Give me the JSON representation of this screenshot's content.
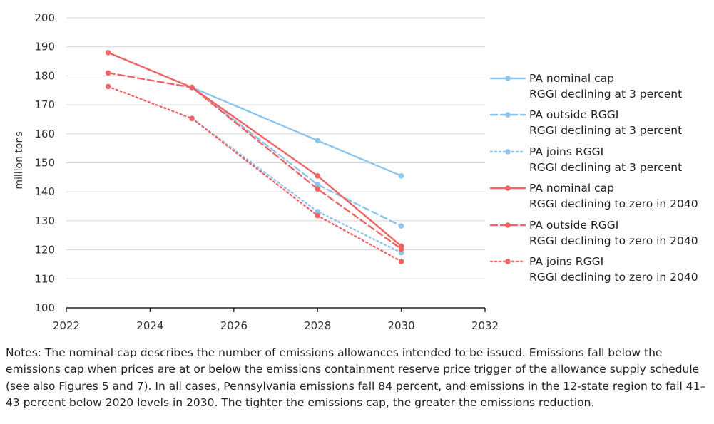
{
  "chart_data": {
    "type": "line",
    "title": "",
    "xlabel": "",
    "ylabel": "million tons",
    "xlim": [
      2022,
      2032
    ],
    "ylim": [
      100,
      200
    ],
    "x_ticks": [
      "2022",
      "2024",
      "2026",
      "2028",
      "2030",
      "2032"
    ],
    "y_ticks": [
      "100",
      "110",
      "120",
      "130",
      "140",
      "150",
      "160",
      "170",
      "180",
      "190",
      "200"
    ],
    "grid": "horizontal",
    "legend_position": "right",
    "series": [
      {
        "name": "PA nominal cap",
        "scenario": "RGGI declining at 3 percent",
        "color": "#8ec5ec",
        "style": "solid",
        "points": [
          [
            2025,
            176
          ],
          [
            2028,
            157.7
          ],
          [
            2030,
            145.5
          ]
        ]
      },
      {
        "name": "PA outside RGGI",
        "scenario": "RGGI declining at 3 percent",
        "color": "#8ec5ec",
        "style": "dashed",
        "points": [
          [
            2025,
            176
          ],
          [
            2028,
            142.5
          ],
          [
            2030,
            128.2
          ]
        ]
      },
      {
        "name": "PA joins RGGI",
        "scenario": "RGGI declining at 3 percent",
        "color": "#8ec5ec",
        "style": "dotted",
        "points": [
          [
            2025,
            165.3
          ],
          [
            2028,
            133.2
          ],
          [
            2030,
            119
          ]
        ]
      },
      {
        "name": "PA nominal cap",
        "scenario": "RGGI declining to zero in 2040",
        "color": "#ef6464",
        "style": "solid",
        "points": [
          [
            2023,
            188
          ],
          [
            2025,
            176
          ],
          [
            2028,
            145.5
          ],
          [
            2030,
            121.3
          ]
        ]
      },
      {
        "name": "PA outside RGGI",
        "scenario": "RGGI declining to zero in 2040",
        "color": "#ef6464",
        "style": "dashed",
        "points": [
          [
            2023,
            181
          ],
          [
            2025,
            176
          ],
          [
            2028,
            141
          ],
          [
            2030,
            120.3
          ]
        ]
      },
      {
        "name": "PA joins RGGI",
        "scenario": "RGGI declining to zero in 2040",
        "color": "#ef6464",
        "style": "dotted",
        "points": [
          [
            2023,
            176.3
          ],
          [
            2025,
            165.3
          ],
          [
            2028,
            131.8
          ],
          [
            2030,
            116
          ]
        ]
      }
    ]
  },
  "notes": "Notes: The nominal cap describes the number of emissions allowances intended to be issued. Emissions fall below the emissions cap when prices are at or below the emissions containment reserve price trigger of the allowance supply schedule (see also Figures 5 and 7). In all cases, Pennsylvania emissions fall 84 percent, and emissions in the 12-state region to fall 41–43 percent below 2020 levels in 2030. The tighter the emissions cap, the greater the emissions reduction."
}
